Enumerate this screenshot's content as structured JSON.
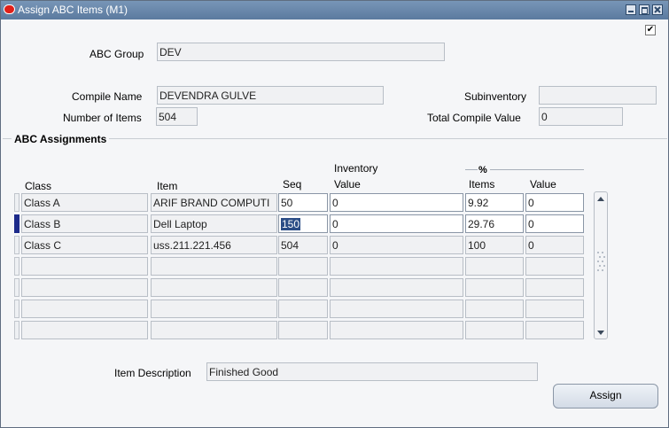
{
  "window": {
    "title": "Assign ABC Items (M1)"
  },
  "header": {
    "abc_group_label": "ABC Group",
    "abc_group_value": "DEV",
    "compile_name_label": "Compile Name",
    "compile_name_value": "DEVENDRA GULVE",
    "number_items_label": "Number of Items",
    "number_items_value": "504",
    "subinventory_label": "Subinventory",
    "subinventory_value": "",
    "total_compile_value_label": "Total Compile Value",
    "total_compile_value_value": "0"
  },
  "assignments": {
    "title": "ABC Assignments",
    "columns": {
      "class": "Class",
      "item": "Item",
      "seq": "Seq",
      "inventory_top": "Inventory",
      "inventory_value": "Value",
      "percent": "%",
      "items": "Items",
      "value": "Value"
    },
    "rows": [
      {
        "class": "Class A",
        "item": "ARIF BRAND COMPUTI",
        "seq": "50",
        "inv_value": "0",
        "items_pct": "9.92",
        "value_pct": "0"
      },
      {
        "class": "Class B",
        "item": "Dell Laptop",
        "seq": "150",
        "inv_value": "0",
        "items_pct": "29.76",
        "value_pct": "0"
      },
      {
        "class": "Class C",
        "item": "uss.211.221.456",
        "seq": "504",
        "inv_value": "0",
        "items_pct": "100",
        "value_pct": "0"
      },
      {
        "class": "",
        "item": "",
        "seq": "",
        "inv_value": "",
        "items_pct": "",
        "value_pct": ""
      },
      {
        "class": "",
        "item": "",
        "seq": "",
        "inv_value": "",
        "items_pct": "",
        "value_pct": ""
      },
      {
        "class": "",
        "item": "",
        "seq": "",
        "inv_value": "",
        "items_pct": "",
        "value_pct": ""
      },
      {
        "class": "",
        "item": "",
        "seq": "",
        "inv_value": "",
        "items_pct": "",
        "value_pct": ""
      }
    ]
  },
  "footer": {
    "item_description_label": "Item Description",
    "item_description_value": "Finished Good",
    "assign_button": "Assign"
  },
  "icons": {
    "app": "oracle-logo-icon",
    "minimize": "minimize-icon",
    "maximize": "maximize-icon",
    "close": "close-icon",
    "check": "checkmark-icon",
    "scroll_up": "scroll-up-icon",
    "scroll_down": "scroll-down-icon"
  }
}
